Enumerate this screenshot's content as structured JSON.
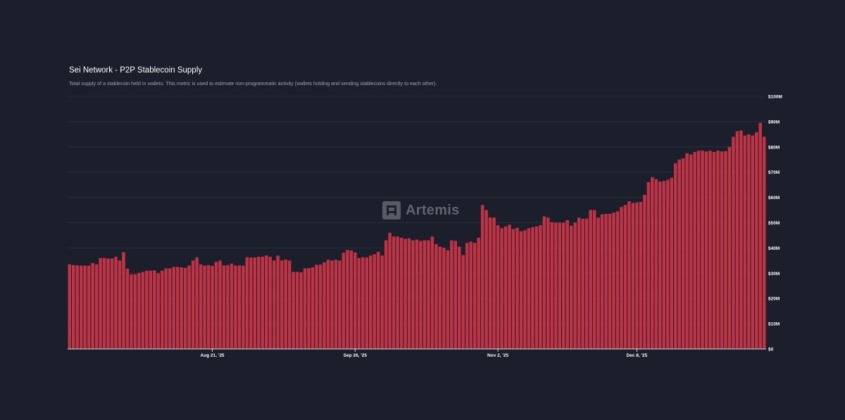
{
  "header": {
    "title": "Sei Network - P2P Stablecoin Supply",
    "subtitle": "Total supply of a stablecoin held in wallets. This metric is used to estimate non-programmatic activity (wallets holding and sending stablecoins directly to each other)."
  },
  "watermark": {
    "text": "Artemis",
    "icon": "artemis-logo-icon"
  },
  "colors": {
    "bar": "#bf3445",
    "background": "#1b1e2b",
    "grid": "#2c2f3c"
  },
  "chart_data": {
    "type": "bar",
    "title": "Sei Network - P2P Stablecoin Supply",
    "ylim": [
      0,
      100
    ],
    "y_unit": "USD millions",
    "y_axis_position": "right",
    "grid": true,
    "x_ticks": [
      {
        "label": "Aug 21, '25",
        "index": 37
      },
      {
        "label": "Sep 26, '25",
        "index": 74
      },
      {
        "label": "Nov 2, '25",
        "index": 111
      },
      {
        "label": "Dec 8, '25",
        "index": 147
      }
    ],
    "y_ticks": [
      "$0",
      "$10M",
      "$20M",
      "$30M",
      "$40M",
      "$50M",
      "$60M",
      "$70M",
      "$80M",
      "$90M",
      "$100M"
    ],
    "values": [
      33.5,
      33.2,
      33.1,
      33.0,
      33.0,
      33.0,
      34.0,
      33.5,
      36.0,
      36.0,
      35.8,
      35.8,
      36.5,
      35.0,
      38.3,
      31.8,
      29.5,
      29.6,
      30.1,
      30.5,
      31.0,
      31.0,
      31.1,
      30.0,
      31.0,
      31.9,
      31.9,
      32.5,
      32.5,
      32.3,
      32.1,
      33.0,
      35.0,
      36.3,
      33.5,
      33.0,
      33.2,
      32.9,
      34.5,
      35.0,
      33.1,
      33.2,
      33.8,
      33.0,
      33.1,
      33.0,
      36.3,
      36.2,
      36.2,
      36.5,
      36.5,
      37.0,
      36.5,
      35.0,
      37.0,
      35.0,
      35.4,
      35.0,
      30.5,
      30.5,
      30.3,
      31.9,
      32.0,
      32.3,
      33.3,
      33.4,
      34.3,
      35.3,
      35.0,
      35.3,
      35.0,
      38.1,
      39.2,
      39.0,
      38.2,
      36.0,
      36.3,
      36.2,
      37.0,
      37.5,
      38.5,
      37.0,
      43.0,
      46.0,
      44.5,
      44.5,
      44.0,
      43.6,
      43.8,
      43.0,
      43.3,
      42.8,
      43.0,
      43.0,
      44.5,
      41.5,
      40.5,
      40.0,
      39.1,
      43.0,
      42.8,
      40.5,
      37.2,
      42.0,
      42.5,
      42.0,
      44.0,
      57.0,
      55.0,
      52.1,
      52.0,
      49.0,
      47.8,
      48.5,
      49.2,
      47.5,
      48.0,
      46.6,
      47.0,
      47.8,
      48.2,
      48.5,
      49.0,
      52.5,
      52.0,
      50.2,
      50.0,
      50.0,
      50.0,
      51.0,
      48.8,
      50.0,
      52.0,
      51.5,
      51.6,
      55.0,
      55.0,
      52.0,
      53.3,
      53.5,
      53.5,
      54.0,
      54.5,
      56.2,
      57.0,
      58.5,
      57.8,
      58.0,
      58.2,
      61.0,
      66.0,
      68.0,
      67.2,
      66.3,
      66.5,
      67.0,
      67.8,
      73.5,
      75.0,
      75.5,
      77.5,
      77.0,
      78.0,
      78.5,
      78.5,
      78.2,
      78.5,
      78.0,
      78.5,
      78.2,
      78.3,
      80.0,
      84.0,
      86.2,
      86.5,
      84.5,
      85.0,
      84.5,
      85.8,
      89.5,
      84.0
    ]
  }
}
